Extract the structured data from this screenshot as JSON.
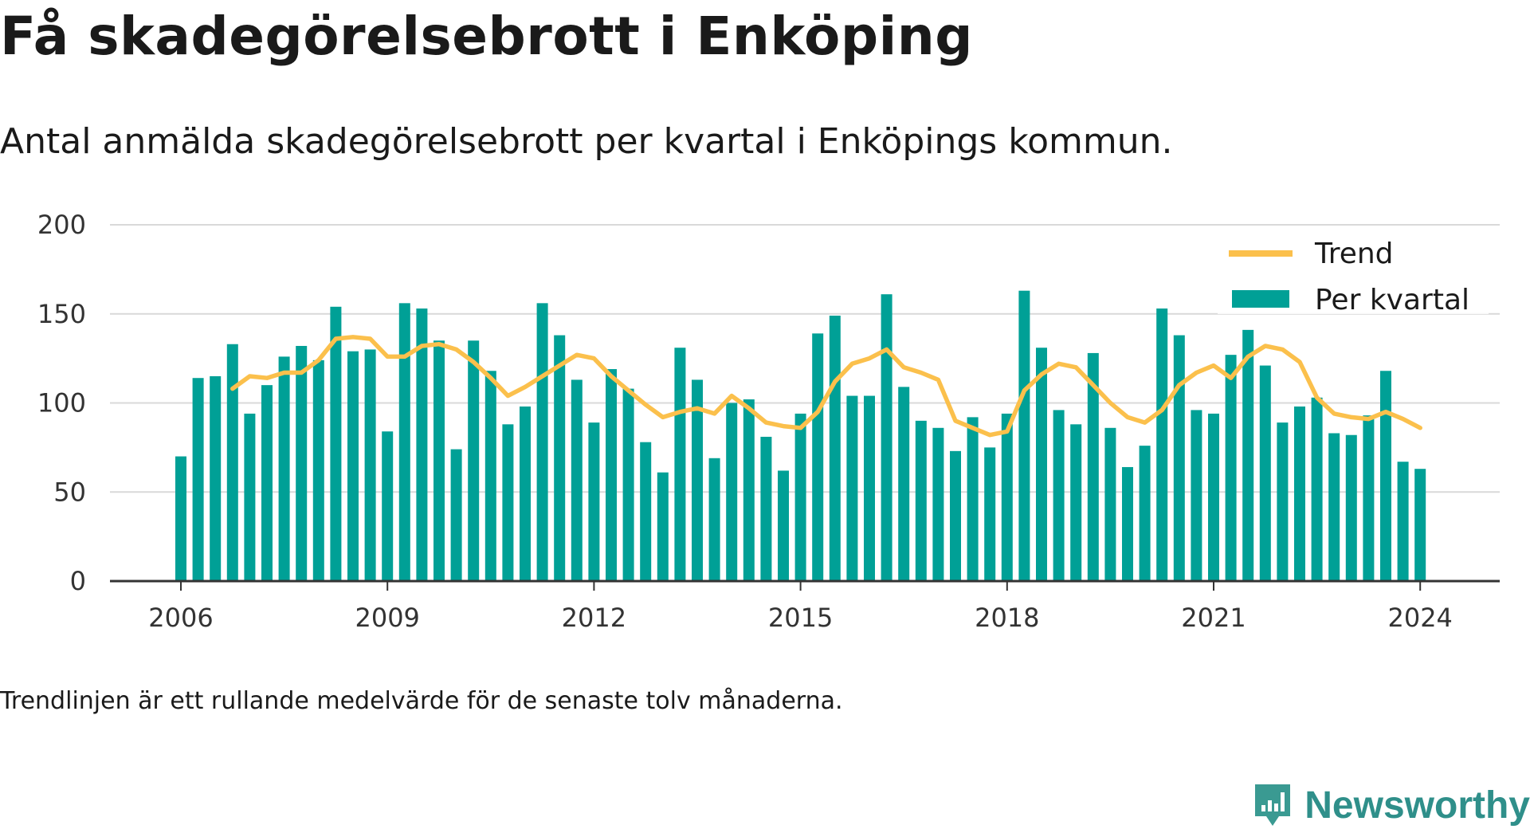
{
  "title": "Få skadegörelsebrott i Enköping",
  "subtitle": "Antal anmälda skadegörelsebrott per kvartal i Enköpings kommun.",
  "note": "Trendlinjen är ett rullande medelvärde för de senaste tolv månaderna.",
  "brand": "Newsworthy",
  "colors": {
    "bar": "#00a096",
    "trend": "#fbc04c",
    "grid": "#d9d9d9",
    "axis": "#333333"
  },
  "chart_data": {
    "type": "bar",
    "x_ticks": [
      "2006",
      "2009",
      "2012",
      "2015",
      "2018",
      "2021",
      "2024"
    ],
    "y_ticks": [
      0,
      50,
      100,
      150,
      200
    ],
    "ylim": [
      0,
      200
    ],
    "grid": true,
    "legend_position": "top-right",
    "legend": [
      "Trend",
      "Per kvartal"
    ],
    "x": [
      "2006 Q1",
      "2006 Q2",
      "2006 Q3",
      "2006 Q4",
      "2007 Q1",
      "2007 Q2",
      "2007 Q3",
      "2007 Q4",
      "2008 Q1",
      "2008 Q2",
      "2008 Q3",
      "2008 Q4",
      "2009 Q1",
      "2009 Q2",
      "2009 Q3",
      "2009 Q4",
      "2010 Q1",
      "2010 Q2",
      "2010 Q3",
      "2010 Q4",
      "2011 Q1",
      "2011 Q2",
      "2011 Q3",
      "2011 Q4",
      "2012 Q1",
      "2012 Q2",
      "2012 Q3",
      "2012 Q4",
      "2013 Q1",
      "2013 Q2",
      "2013 Q3",
      "2013 Q4",
      "2014 Q1",
      "2014 Q2",
      "2014 Q3",
      "2014 Q4",
      "2015 Q1",
      "2015 Q2",
      "2015 Q3",
      "2015 Q4",
      "2016 Q1",
      "2016 Q2",
      "2016 Q3",
      "2016 Q4",
      "2017 Q1",
      "2017 Q2",
      "2017 Q3",
      "2017 Q4",
      "2018 Q1",
      "2018 Q2",
      "2018 Q3",
      "2018 Q4",
      "2019 Q1",
      "2019 Q2",
      "2019 Q3",
      "2019 Q4",
      "2020 Q1",
      "2020 Q2",
      "2020 Q3",
      "2020 Q4",
      "2021 Q1",
      "2021 Q2",
      "2021 Q3",
      "2021 Q4",
      "2022 Q1",
      "2022 Q2",
      "2022 Q3",
      "2022 Q4",
      "2023 Q1",
      "2023 Q2",
      "2023 Q3",
      "2023 Q4",
      "2024 Q1"
    ],
    "series": [
      {
        "name": "Per kvartal",
        "type": "bar",
        "values": [
          70,
          114,
          115,
          133,
          94,
          110,
          126,
          132,
          124,
          154,
          129,
          130,
          84,
          156,
          153,
          135,
          74,
          135,
          118,
          88,
          98,
          156,
          138,
          113,
          89,
          119,
          108,
          78,
          61,
          131,
          113,
          69,
          100,
          102,
          81,
          62,
          94,
          139,
          149,
          104,
          104,
          161,
          109,
          90,
          86,
          73,
          92,
          75,
          94,
          163,
          131,
          96,
          88,
          128,
          86,
          64,
          76,
          153,
          138,
          96,
          94,
          127,
          141,
          121,
          89,
          98,
          103,
          83,
          82,
          93,
          118,
          67,
          63
        ]
      },
      {
        "name": "Trend",
        "type": "line",
        "values": [
          null,
          null,
          null,
          108,
          115,
          114,
          117,
          117,
          124,
          136,
          137,
          136,
          126,
          126,
          132,
          133,
          130,
          123,
          114,
          104,
          109,
          115,
          121,
          127,
          125,
          115,
          107,
          99,
          92,
          95,
          97,
          94,
          104,
          97,
          89,
          87,
          86,
          95,
          112,
          122,
          125,
          130,
          120,
          117,
          113,
          90,
          86,
          82,
          84,
          107,
          116,
          122,
          120,
          110,
          100,
          92,
          89,
          96,
          110,
          117,
          121,
          114,
          126,
          132,
          130,
          123,
          103,
          94,
          92,
          91,
          95,
          91,
          86
        ]
      }
    ]
  }
}
